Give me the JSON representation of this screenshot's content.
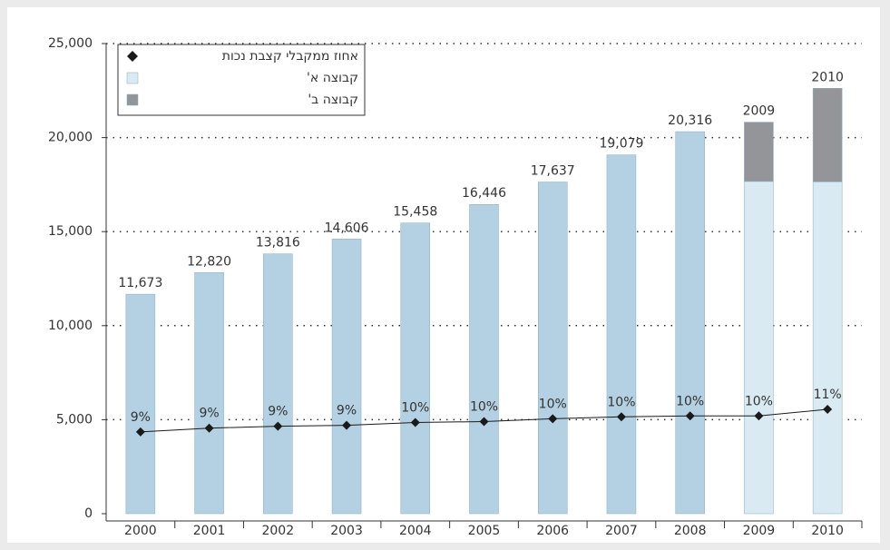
{
  "chart_data": {
    "type": "bar",
    "categories": [
      "2000",
      "2001",
      "2002",
      "2003",
      "2004",
      "2005",
      "2006",
      "2007",
      "2008",
      "2009",
      "2010"
    ],
    "ylim": [
      0,
      25000
    ],
    "yticks": [
      0,
      {
        "value": 5000,
        "label": "5,000"
      },
      {
        "value": 10000,
        "label": "10,000"
      },
      {
        "value": 15000,
        "label": "15,000"
      },
      {
        "value": 20000,
        "label": "20,000"
      },
      {
        "value": 25000,
        "label": "25,000"
      }
    ],
    "y2lim": [
      0,
      50
    ],
    "grid": true,
    "legend": "upper left",
    "series": [
      {
        "name": "קבוצה א'",
        "type": "bar",
        "color": "#d9eaf2",
        "colors": [
          "#b3d1e2",
          "#b3d1e2",
          "#b3d1e2",
          "#b3d1e2",
          "#b3d1e2",
          "#b3d1e2",
          "#b3d1e2",
          "#b3d1e2",
          "#b3d1e2",
          "#d9eaf2",
          "#d9eaf2"
        ],
        "values": [
          11673,
          12820,
          13816,
          14606,
          15458,
          16446,
          17637,
          19079,
          20316,
          17670,
          17650
        ],
        "value_labels": [
          "11,673",
          "12,820",
          "13,816",
          "14,606",
          "15,458",
          "16,446",
          "17,637",
          "19,079",
          "20,316",
          null,
          null
        ]
      },
      {
        "name": "קבוצה ב'",
        "type": "bar",
        "color": "#939598",
        "values": [
          null,
          null,
          null,
          null,
          null,
          null,
          null,
          null,
          null,
          3150,
          4970
        ],
        "value_labels": [
          null,
          null,
          null,
          null,
          null,
          null,
          null,
          null,
          null,
          "2009",
          "2010"
        ]
      },
      {
        "name": "אחוז ממקבלי קצבת נכות",
        "type": "line",
        "axis": "y2",
        "color": "#1a1a1a",
        "values": [
          8.7,
          9.1,
          9.3,
          9.4,
          9.7,
          9.8,
          10.1,
          10.3,
          10.4,
          10.4,
          11.1
        ],
        "value_labels": [
          "9%",
          "9%",
          "9%",
          "9%",
          "10%",
          "10%",
          "10%",
          "10%",
          "10%",
          "10%",
          "11%"
        ]
      }
    ]
  }
}
